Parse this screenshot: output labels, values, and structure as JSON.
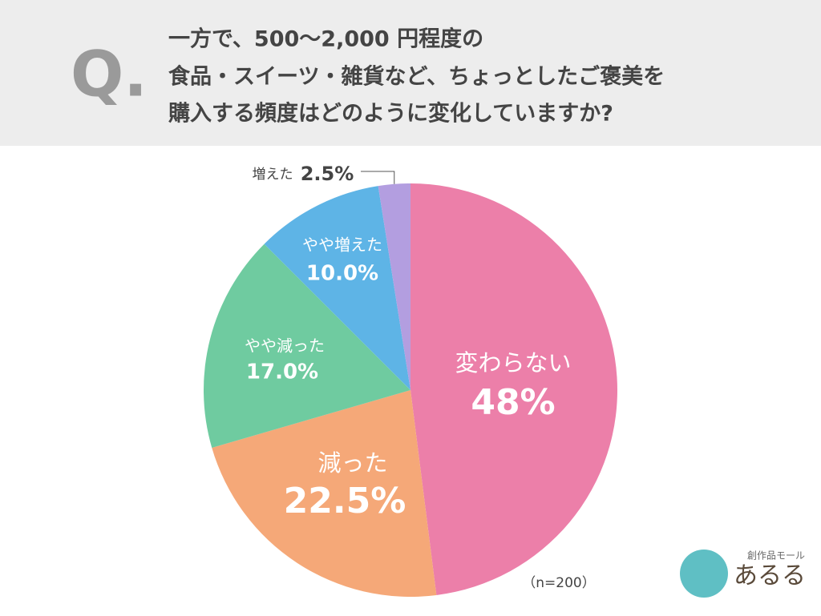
{
  "chart_data": {
    "type": "pie",
    "question_marker": "Q.",
    "title": [
      "一方で、500〜2,000 円程度の",
      "食品・スイーツ・雑貨など、ちょっとしたご褒美を",
      "購入する頻度はどのように変化していますか?"
    ],
    "categories": [
      "変わらない",
      "減った",
      "やや減った",
      "やや増えた",
      "増えた"
    ],
    "values": [
      48,
      22.5,
      17.0,
      10.0,
      2.5
    ],
    "value_labels": [
      "48%",
      "22.5%",
      "17.0%",
      "10.0%",
      "2.5%"
    ],
    "colors": [
      "#ec7fa9",
      "#f5a878",
      "#6fcba0",
      "#5eb4e6",
      "#b39ee0"
    ],
    "note": "（n=200）",
    "logo": {
      "caption": "創作品モール",
      "name": "あるる"
    }
  }
}
